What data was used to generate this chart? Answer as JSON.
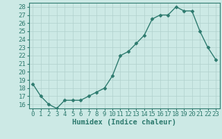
{
  "x": [
    0,
    1,
    2,
    3,
    4,
    5,
    6,
    7,
    8,
    9,
    10,
    11,
    12,
    13,
    14,
    15,
    16,
    17,
    18,
    19,
    20,
    21,
    22,
    23
  ],
  "y": [
    18.5,
    17.0,
    16.0,
    15.5,
    16.5,
    16.5,
    16.5,
    17.0,
    17.5,
    18.0,
    19.5,
    22.0,
    22.5,
    23.5,
    24.5,
    26.5,
    27.0,
    27.0,
    28.0,
    27.5,
    27.5,
    25.0,
    23.0,
    21.5
  ],
  "line_color": "#2d7a6e",
  "marker": "D",
  "marker_size": 2.5,
  "bg_color": "#cce9e5",
  "grid_color": "#b0d0cc",
  "xlabel": "Humidex (Indice chaleur)",
  "ylabel_ticks": [
    16,
    17,
    18,
    19,
    20,
    21,
    22,
    23,
    24,
    25,
    26,
    27,
    28
  ],
  "xlim": [
    -0.5,
    23.5
  ],
  "ylim": [
    15.5,
    28.5
  ],
  "xticks": [
    0,
    1,
    2,
    3,
    4,
    5,
    6,
    7,
    8,
    9,
    10,
    11,
    12,
    13,
    14,
    15,
    16,
    17,
    18,
    19,
    20,
    21,
    22,
    23
  ],
  "xlabel_fontsize": 7.5,
  "tick_fontsize": 6.5,
  "tick_color": "#2d7a6e",
  "axis_color": "#2d7a6e",
  "line_width": 1.0
}
